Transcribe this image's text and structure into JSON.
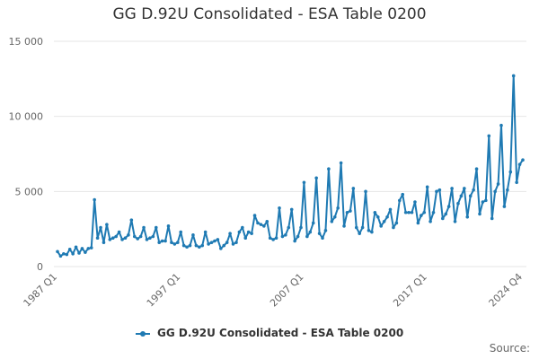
{
  "chart_data": {
    "type": "line",
    "title": "GG D.92U Consolidated - ESA Table 0200",
    "source_label": "Source:",
    "ylim": [
      0,
      15000
    ],
    "y_ticks": [
      "0",
      "5 000",
      "10 000",
      "15 000"
    ],
    "y_tick_values": [
      0,
      5000,
      10000,
      15000
    ],
    "x_tick_labels": [
      "1987 Q1",
      "1997 Q1",
      "2007 Q1",
      "2017 Q1",
      "2024 Q4"
    ],
    "x_tick_index": [
      0,
      40,
      80,
      120,
      151
    ],
    "color": "#1f7ab3",
    "grid": true,
    "legend_position": "bottom",
    "series": [
      {
        "name": "GG D.92U Consolidated - ESA Table 0200",
        "values": [
          1000,
          700,
          850,
          800,
          1150,
          850,
          1300,
          900,
          1200,
          950,
          1200,
          1250,
          4450,
          1900,
          2600,
          1600,
          2800,
          1800,
          1900,
          2000,
          2300,
          1800,
          1900,
          2100,
          3100,
          2000,
          1850,
          2000,
          2600,
          1800,
          1900,
          2000,
          2600,
          1600,
          1700,
          1700,
          2700,
          1600,
          1500,
          1600,
          2300,
          1400,
          1300,
          1400,
          2100,
          1400,
          1300,
          1400,
          2300,
          1500,
          1600,
          1700,
          1800,
          1200,
          1400,
          1600,
          2200,
          1500,
          1600,
          2300,
          2600,
          1900,
          2300,
          2200,
          3400,
          2900,
          2800,
          2700,
          3000,
          1900,
          1800,
          1900,
          3900,
          2000,
          2100,
          2600,
          3800,
          1700,
          2000,
          2600,
          5600,
          2000,
          2300,
          2900,
          5900,
          2200,
          1900,
          2400,
          6500,
          3000,
          3300,
          3900,
          6900,
          2700,
          3600,
          3700,
          5200,
          2600,
          2200,
          2600,
          5000,
          2400,
          2300,
          3600,
          3300,
          2700,
          3000,
          3300,
          3800,
          2600,
          2900,
          4400,
          4800,
          3600,
          3600,
          3600,
          4300,
          2900,
          3400,
          3600,
          5300,
          3000,
          3600,
          5000,
          5100,
          3200,
          3500,
          4000,
          5200,
          3000,
          4200,
          4700,
          5200,
          3300,
          4700,
          5100,
          6500,
          3500,
          4300,
          4400,
          8700,
          3200,
          5000,
          5500,
          9400,
          4000,
          5100,
          6300,
          12700,
          5600,
          6800,
          7100
        ]
      }
    ]
  }
}
